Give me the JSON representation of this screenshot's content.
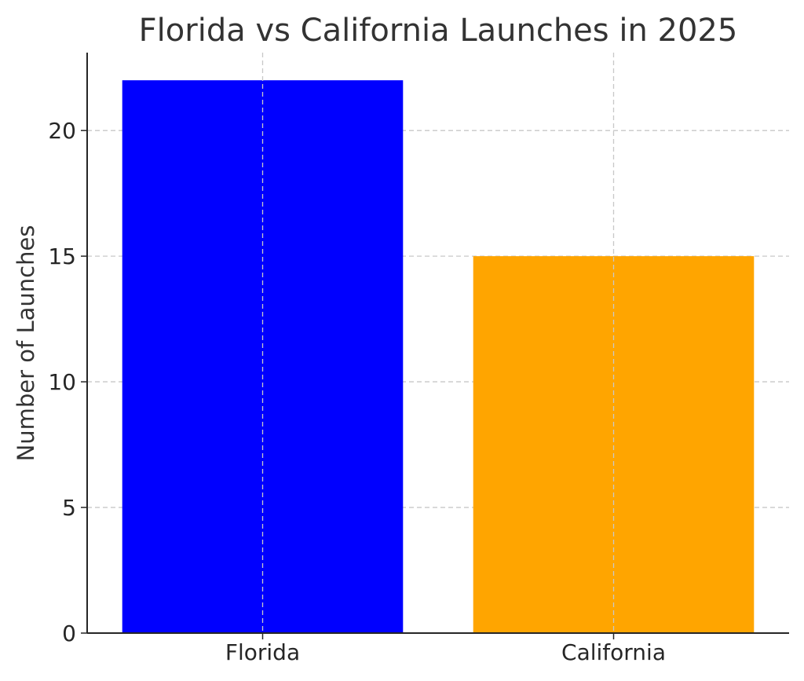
{
  "chart_data": {
    "type": "bar",
    "title": "Florida vs California Launches in 2025",
    "xlabel": "",
    "ylabel": "Number of Launches",
    "categories": [
      "Florida",
      "California"
    ],
    "values": [
      22,
      15
    ],
    "colors": [
      "#0000ff",
      "#ffa500"
    ],
    "ylim": [
      0,
      23.1
    ],
    "yticks": [
      0,
      5,
      10,
      15,
      20
    ],
    "grid": true
  }
}
